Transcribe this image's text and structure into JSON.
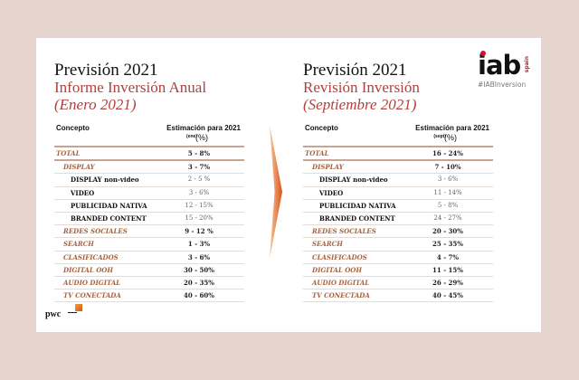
{
  "left": {
    "title": "Previsión 2021",
    "subtitle": "Informe Inversión Anual",
    "date": "(Enero 2021)",
    "col_concept": "Concepto",
    "col_estimate": "Estimación para 2021",
    "col_sub": "(ene)",
    "col_pct": "(%)",
    "rows": [
      {
        "label": "TOTAL",
        "value": "5 - 8%",
        "level": 0
      },
      {
        "label": "DISPLAY",
        "value": "3 - 7%",
        "level": 1
      },
      {
        "label": "DISPLAY non-video",
        "value": "2 - 5 %",
        "level": 2
      },
      {
        "label": "VIDEO",
        "value": "3 - 6%",
        "level": 2
      },
      {
        "label": "PUBLICIDAD NATIVA",
        "value": "12 - 15%",
        "level": 2
      },
      {
        "label": "BRANDED  CONTENT",
        "value": "15 - 20%",
        "level": 2
      },
      {
        "label": "REDES SOCIALES",
        "value": "9 - 12 %",
        "level": 1
      },
      {
        "label": "SEARCH",
        "value": "1 - 3%",
        "level": 1
      },
      {
        "label": "CLASIFICADOS",
        "value": "3 - 6%",
        "level": 1
      },
      {
        "label": "DIGITAL OOH",
        "value": "30 - 50%",
        "level": 1
      },
      {
        "label": "AUDIO DIGITAL",
        "value": "20 - 35%",
        "level": 1
      },
      {
        "label": "TV CONECTADA",
        "value": "40 - 60%",
        "level": 1
      }
    ]
  },
  "right": {
    "title": "Previsión 2021",
    "subtitle": "Revisión Inversión",
    "date": "(Septiembre 2021)",
    "col_concept": "Concepto",
    "col_estimate": "Estimación para 2021",
    "col_sub": "(sept)",
    "col_pct": "(%)",
    "rows": [
      {
        "label": "TOTAL",
        "value": "16 - 24%",
        "level": 0
      },
      {
        "label": "DISPLAY",
        "value": "7 - 10%",
        "level": 1
      },
      {
        "label": "DISPLAY non-video",
        "value": "3 - 6%",
        "level": 2
      },
      {
        "label": "VIDEO",
        "value": "11 - 14%",
        "level": 2
      },
      {
        "label": "PUBLICIDAD NATIVA",
        "value": "5 - 8%",
        "level": 2
      },
      {
        "label": "BRANDED  CONTENT",
        "value": "24 - 27%",
        "level": 2
      },
      {
        "label": "REDES SOCIALES",
        "value": "20 - 30%",
        "level": 1
      },
      {
        "label": "SEARCH",
        "value": "25 - 35%",
        "level": 1
      },
      {
        "label": "CLASIFICADOS",
        "value": "4 - 7%",
        "level": 1
      },
      {
        "label": "DIGITAL OOH",
        "value": "11 - 15%",
        "level": 1
      },
      {
        "label": "AUDIO DIGITAL",
        "value": "26 - 29%",
        "level": 1
      },
      {
        "label": "TV CONECTADA",
        "value": "40 - 45%",
        "level": 1
      }
    ]
  },
  "logos": {
    "iab": "iab",
    "iab_country": "spain",
    "hashtag": "#IABInversion",
    "pwc": "pwc"
  },
  "colors": {
    "accent": "#b0413e",
    "category": "#a8623e",
    "background": "#e6d5cf",
    "arrow": "#d9531a",
    "iab_red": "#d2122e"
  }
}
